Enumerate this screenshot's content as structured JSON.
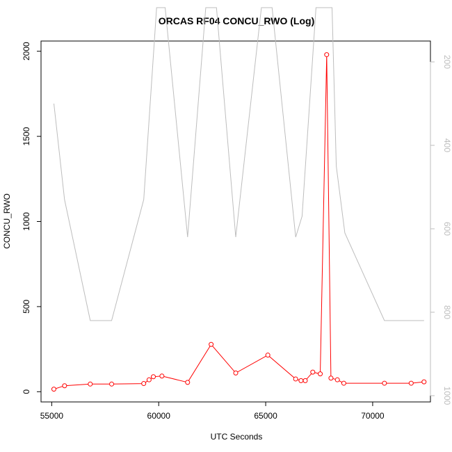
{
  "chart_data": {
    "type": "line",
    "title": "ORCAS RF04 CONCU_RWO (Log)",
    "xlabel": "UTC Seconds",
    "ylabel": "CONCU_RWO",
    "xlim": [
      54500,
      72700
    ],
    "ylim": [
      -60,
      2060
    ],
    "x_ticks": [
      55000,
      60000,
      65000,
      70000
    ],
    "y_ticks": [
      0,
      500,
      1000,
      1500,
      2000
    ],
    "right_axis": {
      "ticks": [
        200,
        400,
        600,
        800,
        1000
      ],
      "range_bottom": 1015,
      "range_top": 150,
      "inverted": true,
      "color": "#bdbdbd"
    },
    "grid": false,
    "series": [
      {
        "color": "#ff0000",
        "marker": "circle",
        "x": [
          55100,
          55600,
          56800,
          57800,
          59300,
          59550,
          59750,
          60150,
          61350,
          62450,
          63600,
          65100,
          66400,
          66650,
          66850,
          67200,
          67550,
          67850,
          68050,
          68350,
          68650,
          70550,
          71800,
          72400
        ],
        "y": [
          15,
          35,
          45,
          45,
          48,
          70,
          88,
          92,
          55,
          278,
          110,
          215,
          75,
          65,
          65,
          115,
          105,
          1980,
          80,
          70,
          50,
          50,
          50,
          58
        ]
      },
      {
        "color": "#bdbdbd",
        "axis": "right",
        "marker": "none",
        "x": [
          55100,
          55600,
          56800,
          57800,
          59300,
          59900,
          60300,
          61350,
          62200,
          62700,
          63600,
          64800,
          65300,
          66400,
          66700,
          67350,
          67650,
          68100,
          68300,
          68700,
          70550,
          72400
        ],
        "y": [
          300,
          530,
          820,
          820,
          530,
          70,
          70,
          620,
          70,
          70,
          620,
          70,
          70,
          620,
          570,
          70,
          70,
          70,
          450,
          610,
          820,
          820
        ]
      }
    ]
  }
}
